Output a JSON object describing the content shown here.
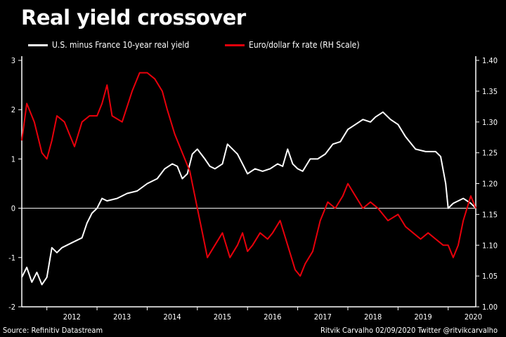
{
  "chart_data": {
    "type": "line",
    "title": "Real yield crossover",
    "source": "Source: Refinitiv Datastream",
    "credit": "Ritvik Carvalho 02/09/2020 Twitter @ritvikcarvalho",
    "x_ticks": [
      "2012",
      "2013",
      "2014",
      "2015",
      "2016",
      "2017",
      "2018",
      "2019",
      "2020"
    ],
    "y_left": {
      "ticks": [
        "-2",
        "-1",
        "0",
        "1",
        "2",
        "3"
      ],
      "range": [
        -2,
        3
      ]
    },
    "y_right": {
      "label": "RH Scale",
      "ticks": [
        "1.00",
        "1.05",
        "1.10",
        "1.15",
        "1.20",
        "1.25",
        "1.30",
        "1.35",
        "1.40"
      ],
      "range": [
        1.0,
        1.4
      ]
    },
    "x_range": [
      2011.5,
      2020.55
    ],
    "zero_line": true,
    "series": [
      {
        "name": "U.S. minus France 10-year real yield",
        "axis": "left",
        "color": "#ffffff",
        "x": [
          2011.5,
          2011.6,
          2011.7,
          2011.8,
          2011.9,
          2012.0,
          2012.1,
          2012.2,
          2012.3,
          2012.5,
          2012.7,
          2012.8,
          2012.9,
          2013.0,
          2013.1,
          2013.2,
          2013.4,
          2013.6,
          2013.8,
          2014.0,
          2014.2,
          2014.35,
          2014.5,
          2014.6,
          2014.7,
          2014.8,
          2014.9,
          2015.0,
          2015.15,
          2015.25,
          2015.35,
          2015.5,
          2015.6,
          2015.8,
          2015.9,
          2016.0,
          2016.15,
          2016.3,
          2016.45,
          2016.6,
          2016.7,
          2016.8,
          2016.9,
          2017.0,
          2017.1,
          2017.25,
          2017.4,
          2017.55,
          2017.7,
          2017.85,
          2018.0,
          2018.15,
          2018.3,
          2018.45,
          2018.55,
          2018.7,
          2018.85,
          2019.0,
          2019.15,
          2019.35,
          2019.55,
          2019.75,
          2019.85,
          2019.95,
          2020.0,
          2020.1,
          2020.3,
          2020.45,
          2020.55
        ],
        "y": [
          -1.4,
          -1.2,
          -1.5,
          -1.3,
          -1.55,
          -1.4,
          -0.8,
          -0.9,
          -0.8,
          -0.7,
          -0.6,
          -0.3,
          -0.1,
          0.0,
          0.2,
          0.15,
          0.2,
          0.3,
          0.35,
          0.5,
          0.6,
          0.8,
          0.9,
          0.85,
          0.6,
          0.7,
          1.1,
          1.2,
          1.0,
          0.85,
          0.8,
          0.9,
          1.3,
          1.1,
          0.9,
          0.7,
          0.8,
          0.75,
          0.8,
          0.9,
          0.85,
          1.2,
          0.9,
          0.8,
          0.75,
          1.0,
          1.0,
          1.1,
          1.3,
          1.35,
          1.6,
          1.7,
          1.8,
          1.75,
          1.85,
          1.95,
          1.8,
          1.7,
          1.45,
          1.2,
          1.15,
          1.15,
          1.05,
          0.5,
          0.0,
          0.1,
          0.2,
          0.1,
          0.0
        ]
      },
      {
        "name": "Euro/dollar fx rate",
        "axis": "right",
        "color": "#e8000b",
        "x": [
          2011.5,
          2011.6,
          2011.75,
          2011.9,
          2012.0,
          2012.1,
          2012.2,
          2012.35,
          2012.45,
          2012.55,
          2012.7,
          2012.85,
          2013.0,
          2013.1,
          2013.2,
          2013.3,
          2013.5,
          2013.7,
          2013.85,
          2014.0,
          2014.15,
          2014.3,
          2014.4,
          2014.55,
          2014.7,
          2014.85,
          2015.0,
          2015.1,
          2015.2,
          2015.35,
          2015.5,
          2015.65,
          2015.8,
          2015.9,
          2016.0,
          2016.1,
          2016.25,
          2016.4,
          2016.5,
          2016.65,
          2016.8,
          2016.95,
          2017.05,
          2017.15,
          2017.3,
          2017.45,
          2017.6,
          2017.75,
          2017.9,
          2018.0,
          2018.15,
          2018.3,
          2018.45,
          2018.6,
          2018.8,
          2019.0,
          2019.15,
          2019.3,
          2019.45,
          2019.6,
          2019.75,
          2019.9,
          2020.0,
          2020.1,
          2020.2,
          2020.3,
          2020.45,
          2020.55
        ],
        "y": [
          1.27,
          1.33,
          1.3,
          1.25,
          1.24,
          1.27,
          1.31,
          1.3,
          1.28,
          1.26,
          1.3,
          1.31,
          1.31,
          1.33,
          1.36,
          1.31,
          1.3,
          1.35,
          1.38,
          1.38,
          1.37,
          1.35,
          1.32,
          1.28,
          1.25,
          1.22,
          1.16,
          1.12,
          1.08,
          1.1,
          1.12,
          1.08,
          1.1,
          1.12,
          1.09,
          1.1,
          1.12,
          1.11,
          1.12,
          1.14,
          1.1,
          1.06,
          1.05,
          1.07,
          1.09,
          1.14,
          1.17,
          1.16,
          1.18,
          1.2,
          1.18,
          1.16,
          1.17,
          1.16,
          1.14,
          1.15,
          1.13,
          1.12,
          1.11,
          1.12,
          1.11,
          1.1,
          1.1,
          1.08,
          1.1,
          1.14,
          1.18,
          1.16
        ]
      }
    ]
  }
}
